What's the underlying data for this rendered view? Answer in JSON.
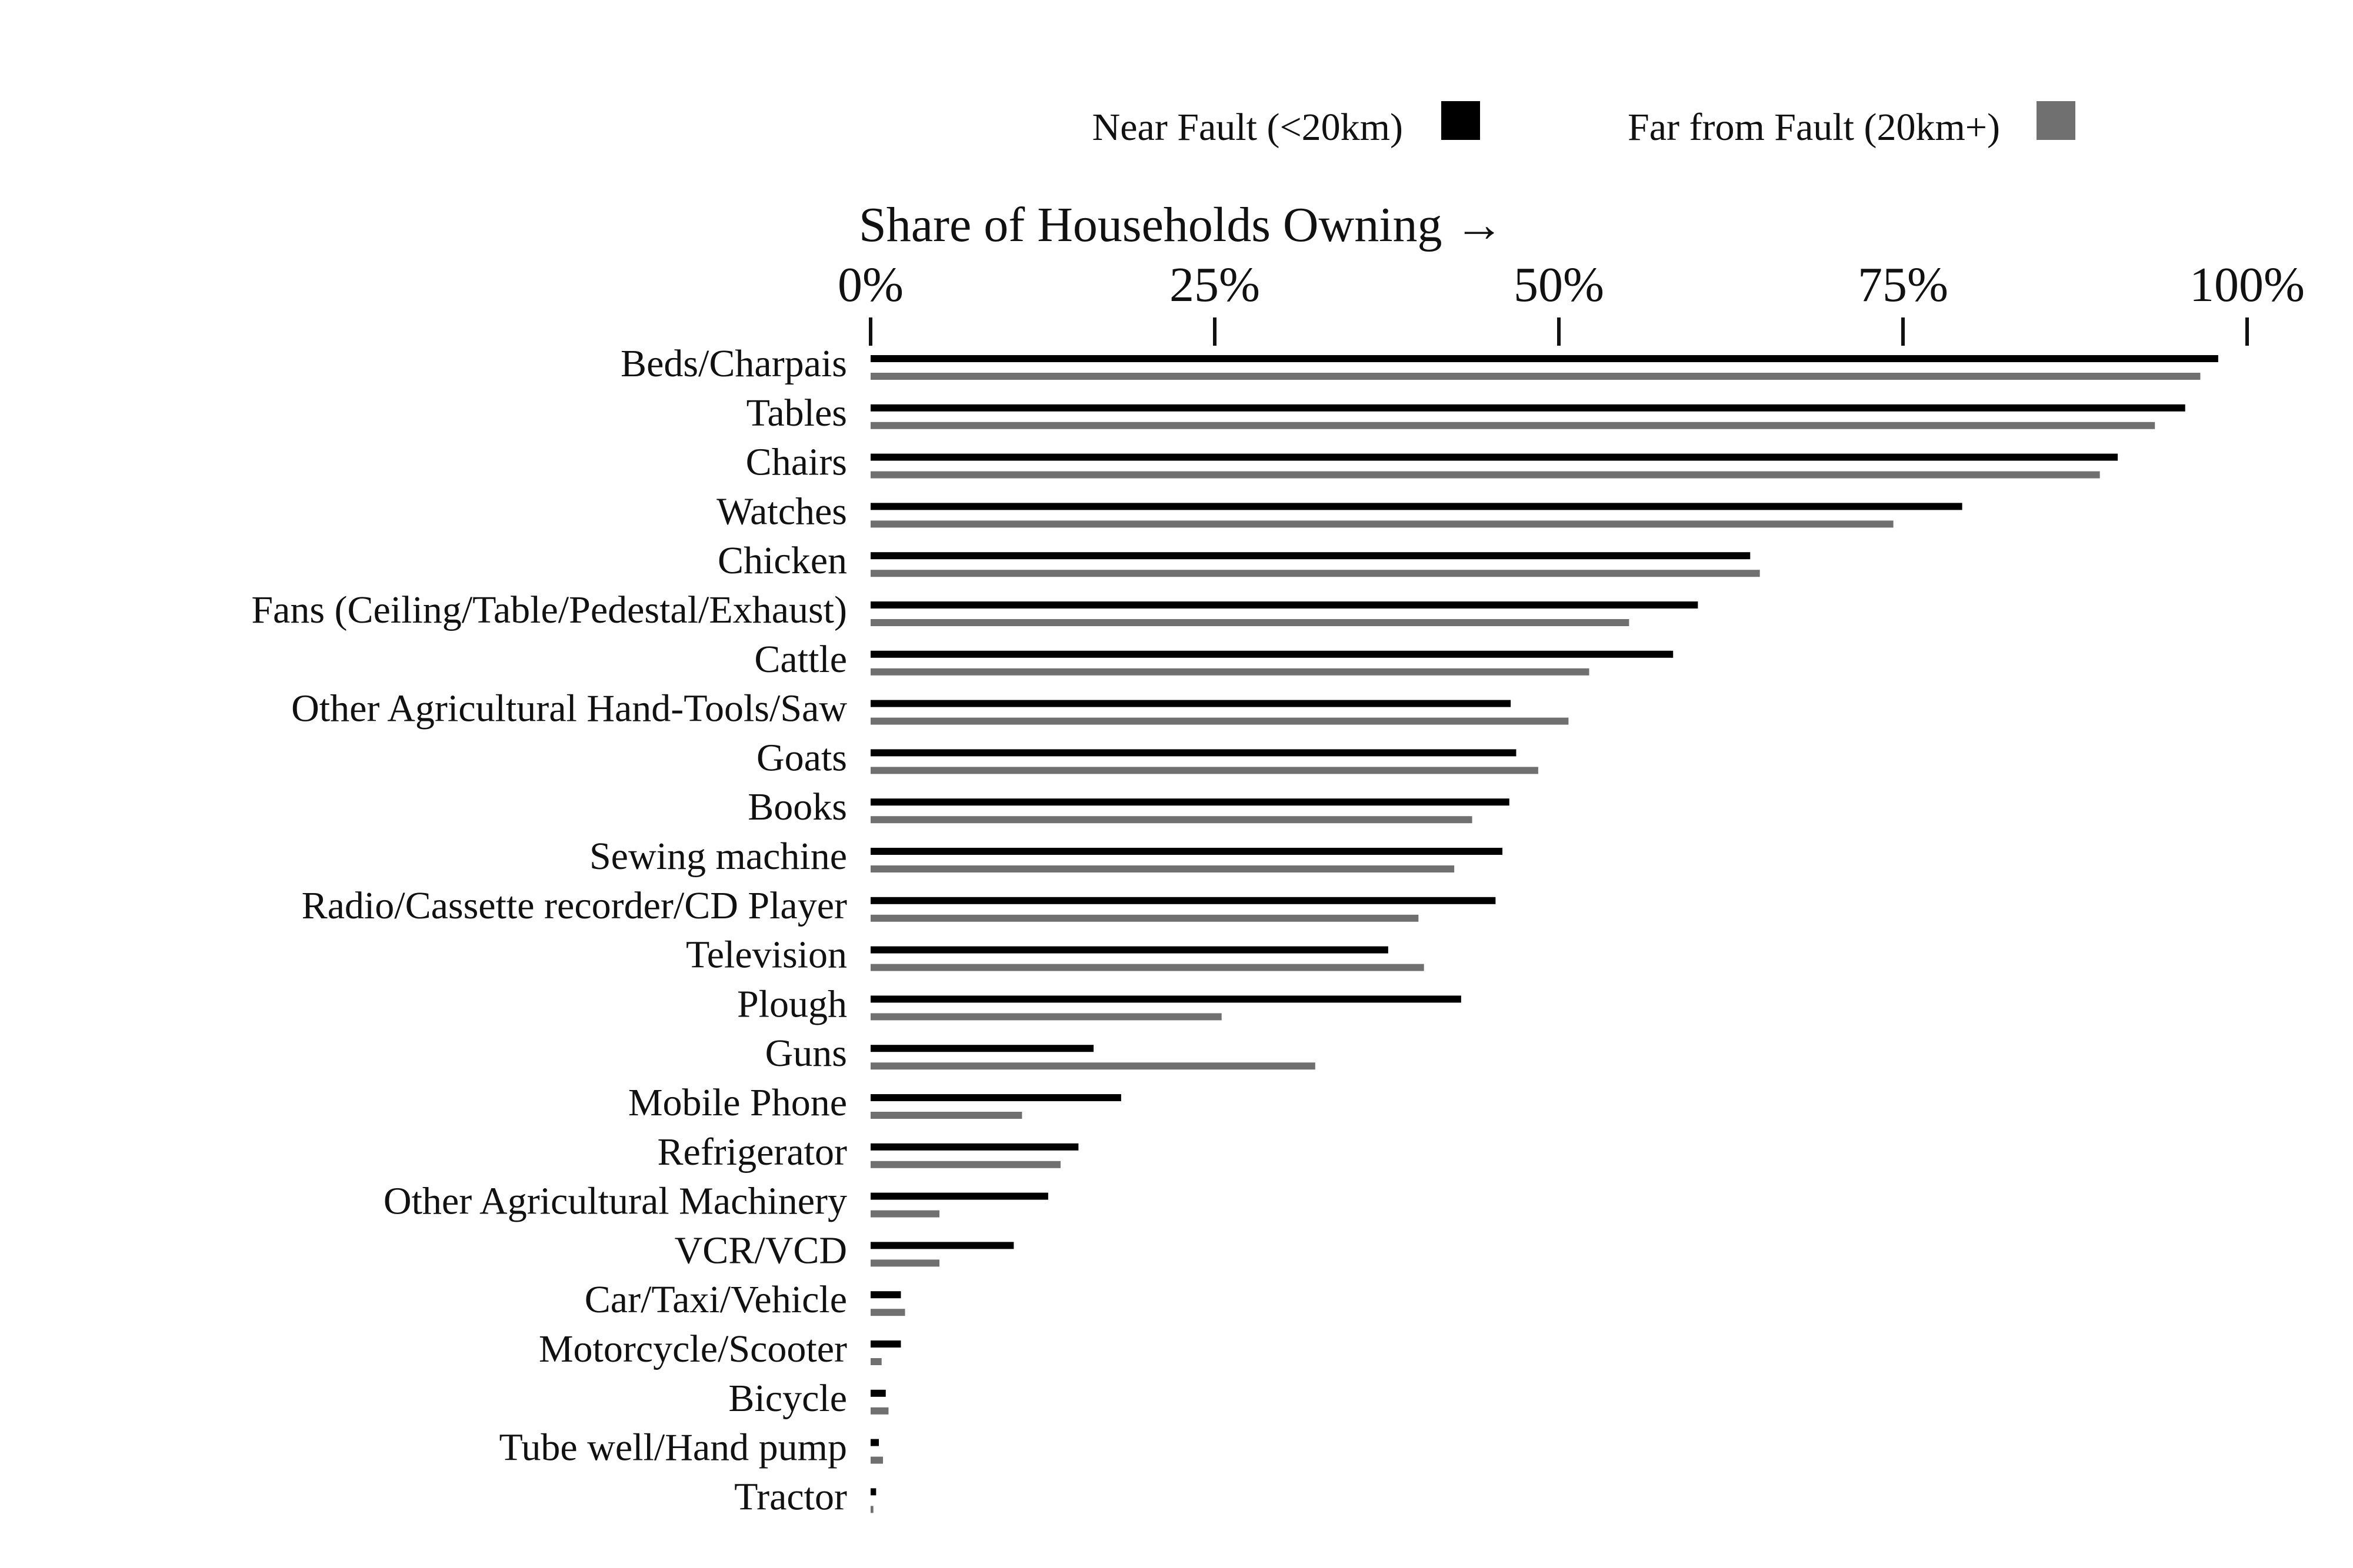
{
  "chart_data": {
    "type": "bar",
    "orientation": "horizontal",
    "title": "",
    "xlabel": "Share of Households Owning →",
    "ylabel": "",
    "xlim": [
      0,
      100
    ],
    "x_ticks": [
      0,
      25,
      50,
      75,
      100
    ],
    "x_tick_labels": [
      "0%",
      "25%",
      "50%",
      "75%",
      "100%"
    ],
    "x_axis_position": "top",
    "grid": false,
    "legend_position": "top",
    "categories": [
      "Beds/Charpais",
      "Tables",
      "Chairs",
      "Watches",
      "Chicken",
      "Fans (Ceiling/Table/Pedestal/Exhaust)",
      "Cattle",
      "Other Agricultural Hand-Tools/Saw",
      "Goats",
      "Books",
      "Sewing machine",
      "Radio/Cassette recorder/CD Player",
      "Television",
      "Plough",
      "Guns",
      "Mobile Phone",
      "Refrigerator",
      "Other Agricultural Machinery",
      "VCR/VCD",
      "Car/Taxi/Vehicle",
      "Motorcycle/Scooter",
      "Bicycle",
      "Tube well/Hand pump",
      "Tractor"
    ],
    "series": [
      {
        "name": "Near Fault (<20km)",
        "color": "#000000",
        "values": [
          97.9,
          95.5,
          90.6,
          79.3,
          63.9,
          60.1,
          58.3,
          46.5,
          46.9,
          46.4,
          45.9,
          45.4,
          37.6,
          42.9,
          16.2,
          18.2,
          15.1,
          12.9,
          10.4,
          2.2,
          2.2,
          1.1,
          0.6,
          0.4
        ]
      },
      {
        "name": "Far from Fault (20km+)",
        "color": "#707070",
        "values": [
          96.6,
          93.3,
          89.3,
          74.3,
          64.6,
          55.1,
          52.2,
          50.7,
          48.5,
          43.7,
          42.4,
          39.8,
          40.2,
          25.5,
          32.3,
          11.0,
          13.8,
          5.0,
          5.0,
          2.5,
          0.8,
          1.3,
          0.9,
          0.2
        ]
      }
    ]
  }
}
